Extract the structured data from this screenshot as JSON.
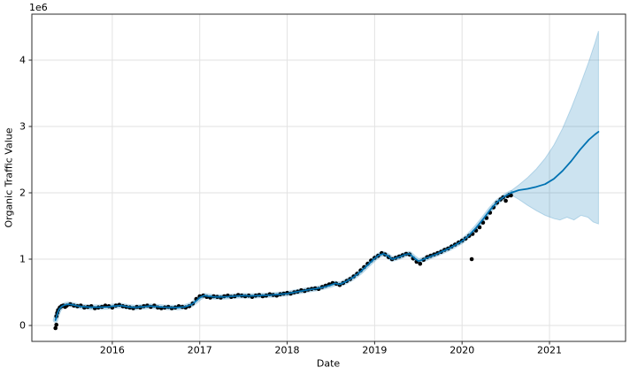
{
  "chart_data": {
    "type": "line",
    "title": "",
    "xlabel": "Date",
    "ylabel": "Organic Traffic Value",
    "y_offset_label": "1e6",
    "value_units": "1e6",
    "grid": true,
    "legend": "none",
    "x_range": [
      2015.08,
      2021.87
    ],
    "y_range": [
      -0.24,
      4.6933
    ],
    "x_ticks": [
      2016,
      2017,
      2018,
      2019,
      2020,
      2021
    ],
    "x_tick_labels": [
      "2016",
      "2017",
      "2018",
      "2019",
      "2020",
      "2021"
    ],
    "y_ticks": [
      0,
      1,
      2,
      3,
      4
    ],
    "y_tick_labels": [
      "0",
      "1",
      "2",
      "3",
      "4"
    ],
    "colors": {
      "line": "#0072B2",
      "band_fill": "rgba(0,114,178,0.2)",
      "band_edge": "rgba(0,114,178,0.22)",
      "history_halo": "rgba(0,114,178,0.28)",
      "points": "#000000",
      "grid": "#e2e2e2",
      "spine": "#2b2b2b",
      "tick_text": "#000000"
    },
    "series": [
      {
        "name": "actuals-scatter",
        "type": "scatter",
        "points": [
          [
            2015.35,
            -0.04
          ],
          [
            2015.36,
            0.01
          ],
          [
            2015.36,
            0.14
          ],
          [
            2015.37,
            0.19
          ],
          [
            2015.38,
            0.23
          ],
          [
            2015.4,
            0.27
          ],
          [
            2015.42,
            0.29
          ],
          [
            2015.44,
            0.3
          ],
          [
            2015.46,
            0.28
          ],
          [
            2015.48,
            0.3
          ],
          [
            2015.52,
            0.32
          ],
          [
            2015.56,
            0.3
          ],
          [
            2015.6,
            0.29
          ],
          [
            2015.64,
            0.3
          ],
          [
            2015.68,
            0.27
          ],
          [
            2015.72,
            0.28
          ],
          [
            2015.76,
            0.29
          ],
          [
            2015.8,
            0.26
          ],
          [
            2015.84,
            0.27
          ],
          [
            2015.88,
            0.28
          ],
          [
            2015.92,
            0.3
          ],
          [
            2015.96,
            0.29
          ],
          [
            2016.0,
            0.27
          ],
          [
            2016.04,
            0.3
          ],
          [
            2016.08,
            0.31
          ],
          [
            2016.12,
            0.29
          ],
          [
            2016.16,
            0.28
          ],
          [
            2016.2,
            0.27
          ],
          [
            2016.24,
            0.26
          ],
          [
            2016.28,
            0.28
          ],
          [
            2016.32,
            0.27
          ],
          [
            2016.36,
            0.29
          ],
          [
            2016.4,
            0.3
          ],
          [
            2016.44,
            0.28
          ],
          [
            2016.48,
            0.3
          ],
          [
            2016.52,
            0.27
          ],
          [
            2016.56,
            0.26
          ],
          [
            2016.6,
            0.27
          ],
          [
            2016.64,
            0.28
          ],
          [
            2016.68,
            0.26
          ],
          [
            2016.72,
            0.27
          ],
          [
            2016.76,
            0.29
          ],
          [
            2016.8,
            0.28
          ],
          [
            2016.84,
            0.27
          ],
          [
            2016.88,
            0.29
          ],
          [
            2016.92,
            0.33
          ],
          [
            2016.96,
            0.4
          ],
          [
            2017.0,
            0.44
          ],
          [
            2017.04,
            0.45
          ],
          [
            2017.08,
            0.43
          ],
          [
            2017.12,
            0.42
          ],
          [
            2017.16,
            0.44
          ],
          [
            2017.2,
            0.43
          ],
          [
            2017.24,
            0.42
          ],
          [
            2017.28,
            0.44
          ],
          [
            2017.32,
            0.45
          ],
          [
            2017.36,
            0.43
          ],
          [
            2017.4,
            0.44
          ],
          [
            2017.44,
            0.46
          ],
          [
            2017.48,
            0.45
          ],
          [
            2017.52,
            0.44
          ],
          [
            2017.56,
            0.45
          ],
          [
            2017.6,
            0.43
          ],
          [
            2017.64,
            0.45
          ],
          [
            2017.68,
            0.46
          ],
          [
            2017.72,
            0.44
          ],
          [
            2017.76,
            0.45
          ],
          [
            2017.8,
            0.47
          ],
          [
            2017.84,
            0.46
          ],
          [
            2017.88,
            0.45
          ],
          [
            2017.92,
            0.47
          ],
          [
            2017.96,
            0.48
          ],
          [
            2018.0,
            0.49
          ],
          [
            2018.04,
            0.48
          ],
          [
            2018.08,
            0.5
          ],
          [
            2018.12,
            0.51
          ],
          [
            2018.16,
            0.53
          ],
          [
            2018.2,
            0.52
          ],
          [
            2018.24,
            0.54
          ],
          [
            2018.28,
            0.55
          ],
          [
            2018.32,
            0.56
          ],
          [
            2018.36,
            0.55
          ],
          [
            2018.4,
            0.58
          ],
          [
            2018.44,
            0.6
          ],
          [
            2018.48,
            0.62
          ],
          [
            2018.52,
            0.64
          ],
          [
            2018.56,
            0.63
          ],
          [
            2018.6,
            0.61
          ],
          [
            2018.64,
            0.64
          ],
          [
            2018.68,
            0.67
          ],
          [
            2018.72,
            0.7
          ],
          [
            2018.76,
            0.74
          ],
          [
            2018.8,
            0.78
          ],
          [
            2018.84,
            0.83
          ],
          [
            2018.88,
            0.88
          ],
          [
            2018.92,
            0.93
          ],
          [
            2018.96,
            0.98
          ],
          [
            2019.0,
            1.02
          ],
          [
            2019.04,
            1.05
          ],
          [
            2019.08,
            1.09
          ],
          [
            2019.12,
            1.07
          ],
          [
            2019.16,
            1.03
          ],
          [
            2019.2,
            1.0
          ],
          [
            2019.24,
            1.02
          ],
          [
            2019.28,
            1.04
          ],
          [
            2019.32,
            1.06
          ],
          [
            2019.36,
            1.08
          ],
          [
            2019.4,
            1.07
          ],
          [
            2019.44,
            1.01
          ],
          [
            2019.48,
            0.96
          ],
          [
            2019.52,
            0.93
          ],
          [
            2019.56,
            0.99
          ],
          [
            2019.6,
            1.03
          ],
          [
            2019.64,
            1.05
          ],
          [
            2019.68,
            1.07
          ],
          [
            2019.72,
            1.09
          ],
          [
            2019.76,
            1.11
          ],
          [
            2019.8,
            1.14
          ],
          [
            2019.84,
            1.16
          ],
          [
            2019.88,
            1.19
          ],
          [
            2019.92,
            1.22
          ],
          [
            2019.96,
            1.25
          ],
          [
            2020.0,
            1.28
          ],
          [
            2020.04,
            1.31
          ],
          [
            2020.08,
            1.35
          ],
          [
            2020.11,
            1.0
          ],
          [
            2020.12,
            1.38
          ],
          [
            2020.16,
            1.43
          ],
          [
            2020.2,
            1.48
          ],
          [
            2020.24,
            1.55
          ],
          [
            2020.28,
            1.62
          ],
          [
            2020.32,
            1.7
          ],
          [
            2020.36,
            1.78
          ],
          [
            2020.4,
            1.85
          ],
          [
            2020.44,
            1.9
          ],
          [
            2020.47,
            1.93
          ],
          [
            2020.5,
            1.88
          ],
          [
            2020.52,
            1.95
          ],
          [
            2020.54,
            1.97
          ],
          [
            2020.56,
            1.96
          ]
        ]
      },
      {
        "name": "yhat-line",
        "type": "line",
        "history_end_x": 2020.56,
        "points": [
          [
            2015.35,
            0.08
          ],
          [
            2015.37,
            0.17
          ],
          [
            2015.39,
            0.24
          ],
          [
            2015.42,
            0.285
          ],
          [
            2015.46,
            0.31
          ],
          [
            2015.5,
            0.32
          ],
          [
            2015.55,
            0.31
          ],
          [
            2015.6,
            0.295
          ],
          [
            2015.65,
            0.285
          ],
          [
            2015.75,
            0.275
          ],
          [
            2015.85,
            0.275
          ],
          [
            2015.95,
            0.28
          ],
          [
            2016.05,
            0.295
          ],
          [
            2016.1,
            0.3
          ],
          [
            2016.18,
            0.28
          ],
          [
            2016.25,
            0.27
          ],
          [
            2016.33,
            0.28
          ],
          [
            2016.42,
            0.29
          ],
          [
            2016.5,
            0.285
          ],
          [
            2016.58,
            0.275
          ],
          [
            2016.67,
            0.27
          ],
          [
            2016.75,
            0.27
          ],
          [
            2016.83,
            0.28
          ],
          [
            2016.9,
            0.31
          ],
          [
            2016.95,
            0.36
          ],
          [
            2017.0,
            0.42
          ],
          [
            2017.05,
            0.45
          ],
          [
            2017.1,
            0.44
          ],
          [
            2017.17,
            0.43
          ],
          [
            2017.25,
            0.43
          ],
          [
            2017.33,
            0.435
          ],
          [
            2017.42,
            0.445
          ],
          [
            2017.5,
            0.45
          ],
          [
            2017.58,
            0.445
          ],
          [
            2017.67,
            0.45
          ],
          [
            2017.75,
            0.455
          ],
          [
            2017.83,
            0.46
          ],
          [
            2017.92,
            0.47
          ],
          [
            2018.0,
            0.48
          ],
          [
            2018.08,
            0.5
          ],
          [
            2018.17,
            0.52
          ],
          [
            2018.25,
            0.54
          ],
          [
            2018.33,
            0.555
          ],
          [
            2018.42,
            0.58
          ],
          [
            2018.5,
            0.61
          ],
          [
            2018.55,
            0.635
          ],
          [
            2018.6,
            0.62
          ],
          [
            2018.67,
            0.66
          ],
          [
            2018.75,
            0.72
          ],
          [
            2018.83,
            0.8
          ],
          [
            2018.92,
            0.91
          ],
          [
            2019.0,
            1.01
          ],
          [
            2019.05,
            1.06
          ],
          [
            2019.1,
            1.08
          ],
          [
            2019.15,
            1.05
          ],
          [
            2019.2,
            1.0
          ],
          [
            2019.28,
            1.03
          ],
          [
            2019.35,
            1.07
          ],
          [
            2019.4,
            1.08
          ],
          [
            2019.45,
            1.02
          ],
          [
            2019.5,
            0.97
          ],
          [
            2019.55,
            0.99
          ],
          [
            2019.62,
            1.03
          ],
          [
            2019.7,
            1.07
          ],
          [
            2019.78,
            1.12
          ],
          [
            2019.85,
            1.16
          ],
          [
            2019.92,
            1.21
          ],
          [
            2020.0,
            1.27
          ],
          [
            2020.08,
            1.36
          ],
          [
            2020.16,
            1.47
          ],
          [
            2020.24,
            1.6
          ],
          [
            2020.32,
            1.74
          ],
          [
            2020.4,
            1.86
          ],
          [
            2020.48,
            1.94
          ],
          [
            2020.56,
            2.0
          ],
          [
            2020.65,
            2.04
          ],
          [
            2020.75,
            2.06
          ],
          [
            2020.85,
            2.09
          ],
          [
            2020.95,
            2.13
          ],
          [
            2021.05,
            2.21
          ],
          [
            2021.15,
            2.33
          ],
          [
            2021.25,
            2.48
          ],
          [
            2021.35,
            2.65
          ],
          [
            2021.45,
            2.8
          ],
          [
            2021.52,
            2.88
          ],
          [
            2021.56,
            2.92
          ]
        ]
      },
      {
        "name": "uncertainty-band",
        "type": "band",
        "upper": [
          [
            2020.56,
            2.03
          ],
          [
            2020.65,
            2.12
          ],
          [
            2020.75,
            2.23
          ],
          [
            2020.85,
            2.36
          ],
          [
            2020.95,
            2.52
          ],
          [
            2021.05,
            2.72
          ],
          [
            2021.15,
            2.97
          ],
          [
            2021.25,
            3.28
          ],
          [
            2021.35,
            3.62
          ],
          [
            2021.45,
            3.98
          ],
          [
            2021.52,
            4.26
          ],
          [
            2021.56,
            4.44
          ]
        ],
        "lower": [
          [
            2020.56,
            1.97
          ],
          [
            2020.65,
            1.9
          ],
          [
            2020.75,
            1.81
          ],
          [
            2020.85,
            1.73
          ],
          [
            2020.95,
            1.66
          ],
          [
            2021.05,
            1.61
          ],
          [
            2021.12,
            1.59
          ],
          [
            2021.2,
            1.63
          ],
          [
            2021.28,
            1.59
          ],
          [
            2021.36,
            1.66
          ],
          [
            2021.44,
            1.63
          ],
          [
            2021.5,
            1.56
          ],
          [
            2021.56,
            1.53
          ]
        ]
      }
    ]
  }
}
